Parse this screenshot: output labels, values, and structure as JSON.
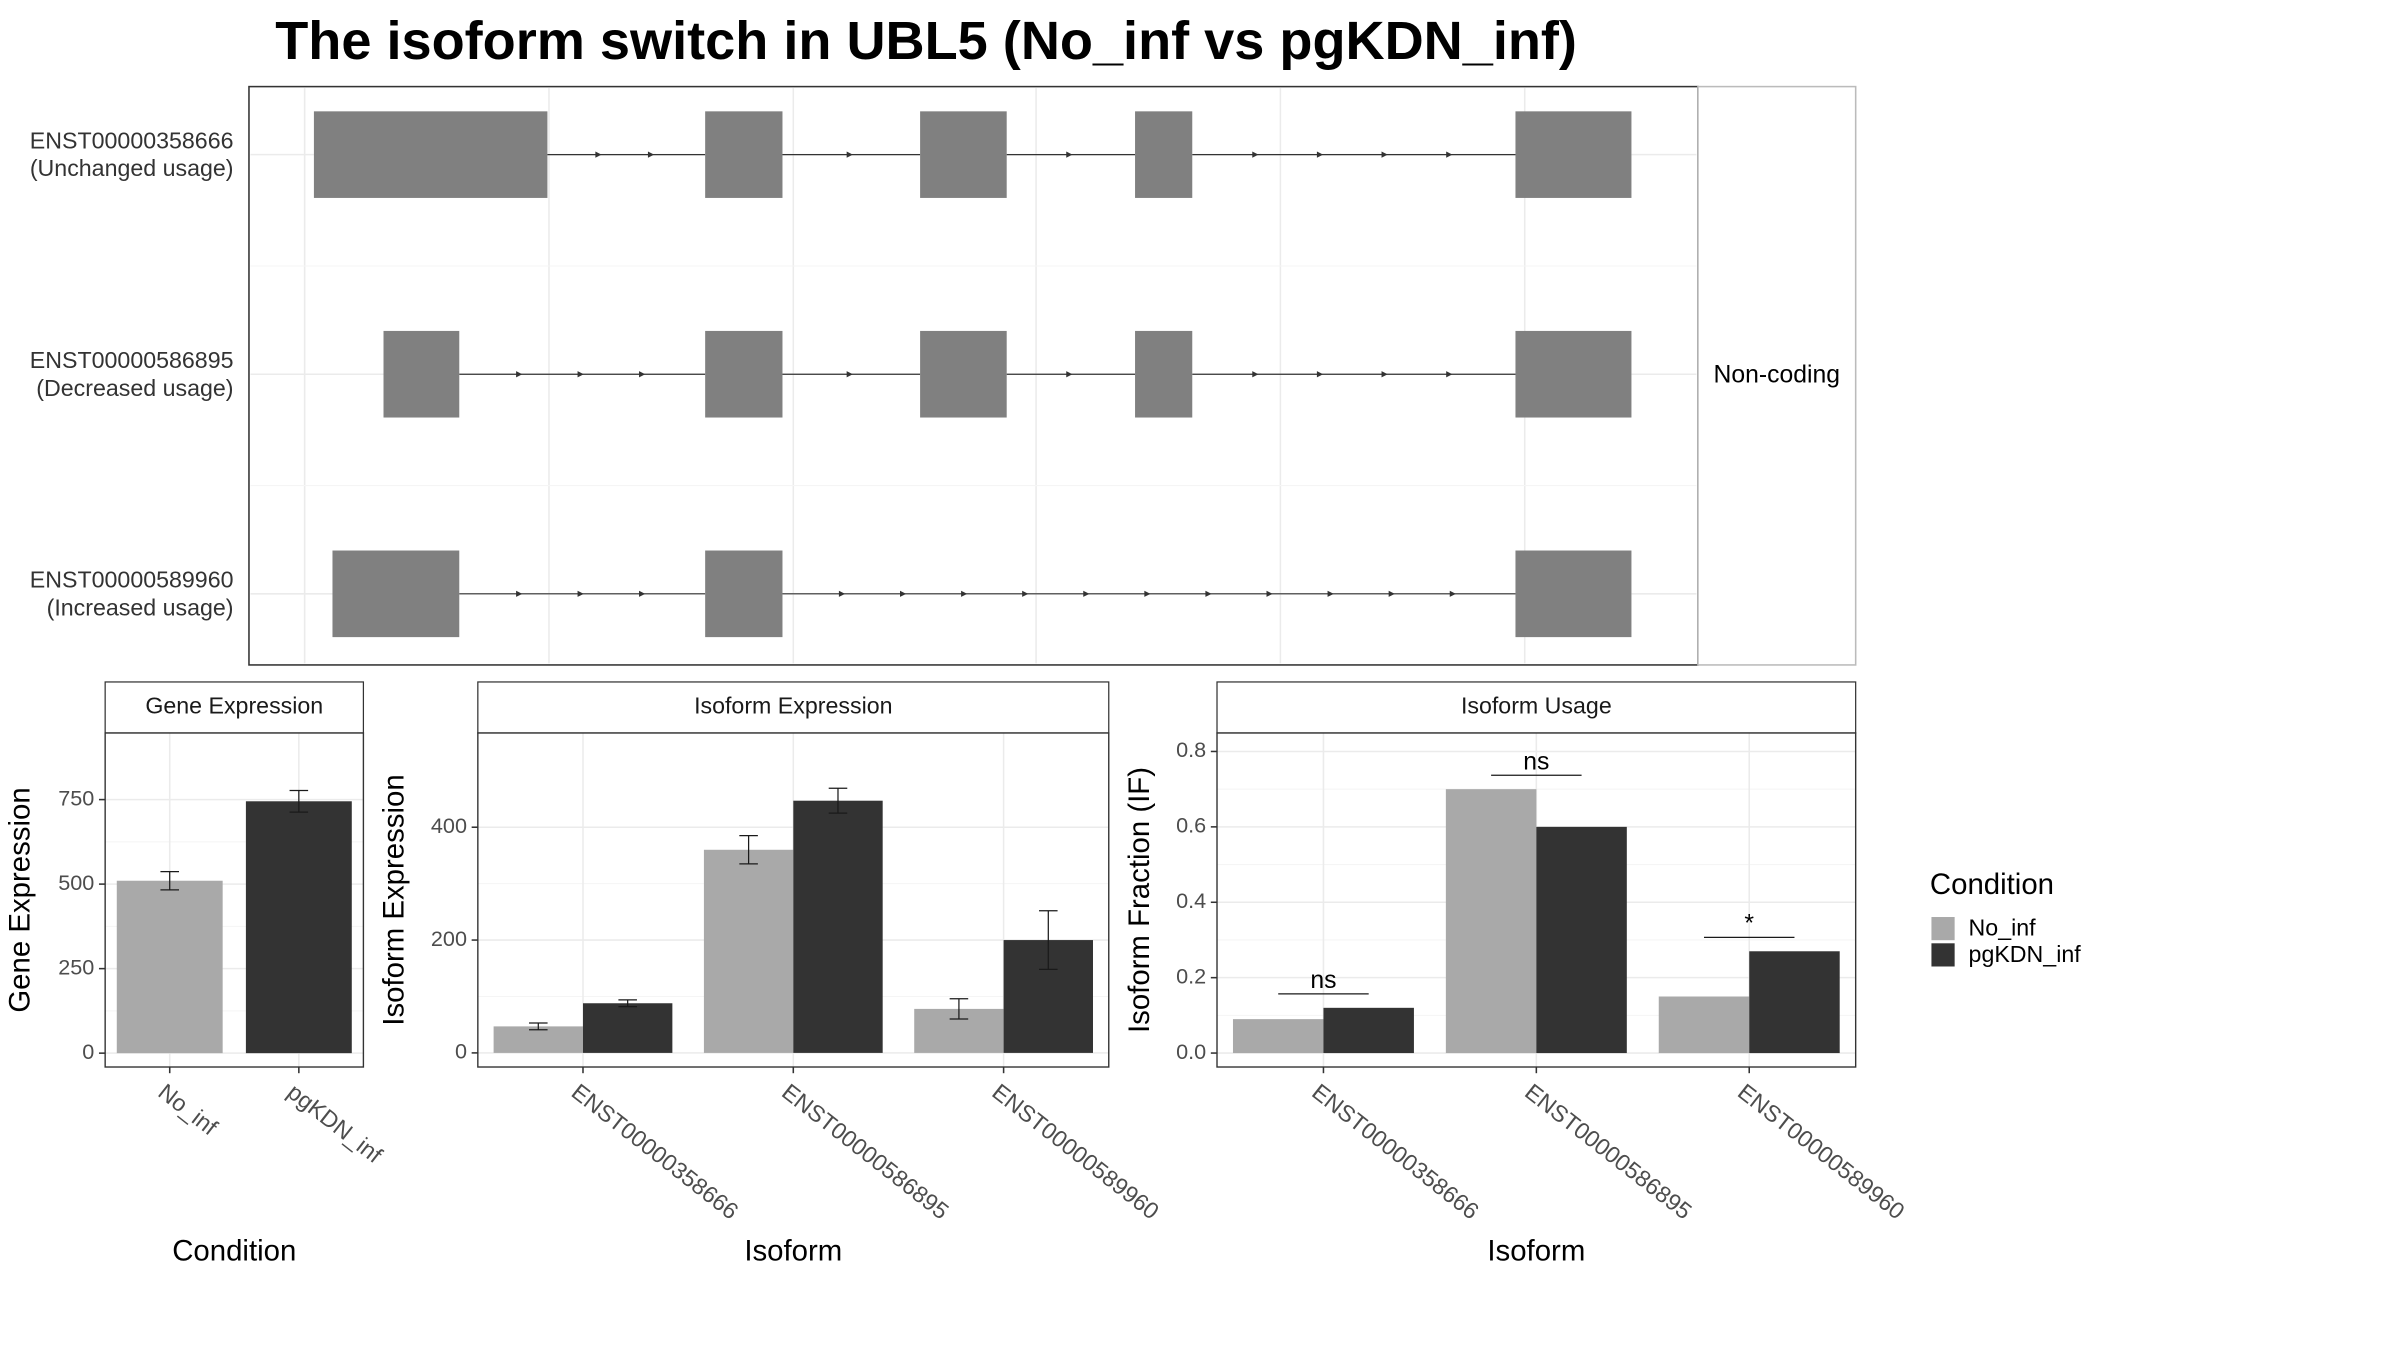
{
  "title": "The isoform switch in UBL5 (No_inf vs pgKDN_inf)",
  "transcript_structure": {
    "transcripts": [
      {
        "name": "ENST00000358666",
        "usage": "(Unchanged usage)"
      },
      {
        "name": "ENST00000586895",
        "usage": "(Decreased usage)"
      },
      {
        "name": "ENST00000589960",
        "usage": "(Increased usage)"
      }
    ],
    "strip": "Non-coding"
  },
  "legend": {
    "title": "Condition",
    "position": "right"
  },
  "chart_data": [
    {
      "type": "bar",
      "strip": "Gene Expression",
      "x_label": "Condition",
      "y_label": "Gene Expression",
      "categories": [
        "No_inf",
        "pgKDN_inf"
      ],
      "values": [
        510,
        745
      ],
      "errors": [
        27,
        32
      ],
      "colors": [
        "#a9a9a9",
        "#333333"
      ],
      "ylim": [
        -41,
        947
      ],
      "yticks": [
        0,
        250,
        500,
        750
      ],
      "grid": true
    },
    {
      "type": "grouped_bar",
      "strip": "Isoform Expression",
      "x_label": "Isoform",
      "y_label": "Isoform Expression",
      "categories": [
        "ENST00000358666",
        "ENST00000586895",
        "ENST00000589960"
      ],
      "series": [
        {
          "name": "No_inf",
          "color": "#a9a9a9",
          "values": [
            47,
            360,
            78
          ],
          "errors": [
            6,
            25,
            18
          ]
        },
        {
          "name": "pgKDN_inf",
          "color": "#333333",
          "values": [
            88,
            447,
            200
          ],
          "errors": [
            6,
            22,
            52
          ]
        }
      ],
      "ylim": [
        -25,
        567
      ],
      "yticks": [
        0,
        200,
        400
      ],
      "grid": true
    },
    {
      "type": "grouped_bar",
      "strip": "Isoform Usage",
      "x_label": "Isoform",
      "y_label": "Isoform Fraction (IF)",
      "categories": [
        "ENST00000358666",
        "ENST00000586895",
        "ENST00000589960"
      ],
      "series": [
        {
          "name": "No_inf",
          "color": "#a9a9a9",
          "values": [
            0.09,
            0.7,
            0.15
          ]
        },
        {
          "name": "pgKDN_inf",
          "color": "#333333",
          "values": [
            0.12,
            0.6,
            0.27
          ]
        }
      ],
      "significance": [
        "ns",
        "ns",
        "*"
      ],
      "ylim": [
        -0.037,
        0.849
      ],
      "yticks": [
        {
          "value": 0,
          "label": "0.0"
        },
        {
          "value": 0.2,
          "label": "0.2"
        },
        {
          "value": 0.4,
          "label": "0.4"
        },
        {
          "value": 0.6,
          "label": "0.6"
        },
        {
          "value": 0.8,
          "label": "0.8"
        }
      ],
      "grid": true
    }
  ]
}
